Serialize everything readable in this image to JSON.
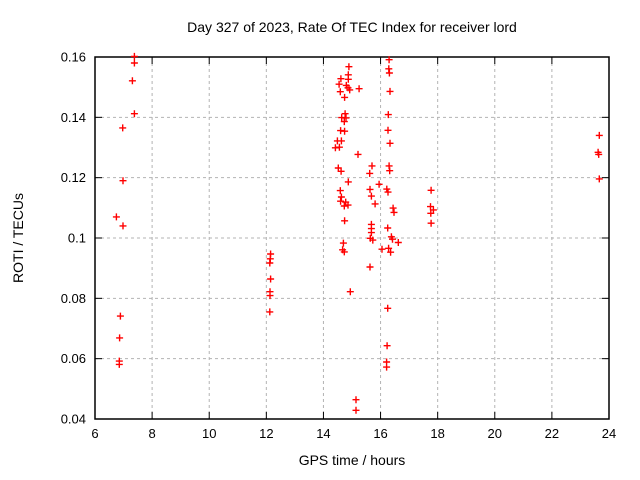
{
  "window": {
    "background": "#ffffff"
  },
  "chart_data": {
    "type": "scatter",
    "title": "Day 327 of 2023, Rate Of TEC Index for receiver lord",
    "xlabel": "GPS time / hours",
    "ylabel": "ROTI / TECUs",
    "xlim": [
      6,
      24
    ],
    "ylim": [
      0.04,
      0.16
    ],
    "xticks": [
      6,
      8,
      10,
      12,
      14,
      16,
      18,
      20,
      22,
      24
    ],
    "yticks": [
      0.04,
      0.06,
      0.08,
      0.1,
      0.12,
      0.14,
      0.16
    ],
    "ytick_labels": [
      "0.04",
      "0.06",
      "0.08",
      "0.1",
      "0.12",
      "0.14",
      "0.16"
    ],
    "grid": true,
    "legend": false,
    "marker": "plus",
    "colors": {
      "marker": "#ff0000",
      "grid": "#b3b3b3",
      "axis": "#000000",
      "text": "#000000",
      "background": "#ffffff"
    },
    "series": [
      {
        "name": "ROTI",
        "points": [
          [
            7.38,
            0.1602
          ],
          [
            7.38,
            0.158
          ],
          [
            7.31,
            0.1521
          ],
          [
            7.38,
            0.1412
          ],
          [
            6.97,
            0.1365
          ],
          [
            6.98,
            0.119
          ],
          [
            6.75,
            0.107
          ],
          [
            6.98,
            0.104
          ],
          [
            6.89,
            0.0741
          ],
          [
            6.86,
            0.0669
          ],
          [
            6.85,
            0.0592
          ],
          [
            6.85,
            0.0581
          ],
          [
            12.15,
            0.0947
          ],
          [
            12.14,
            0.0931
          ],
          [
            12.12,
            0.0917
          ],
          [
            12.15,
            0.0864
          ],
          [
            12.13,
            0.0822
          ],
          [
            12.13,
            0.0809
          ],
          [
            12.12,
            0.0755
          ],
          [
            14.89,
            0.1568
          ],
          [
            14.87,
            0.1541
          ],
          [
            14.87,
            0.1526
          ],
          [
            14.61,
            0.1528
          ],
          [
            14.55,
            0.151
          ],
          [
            14.8,
            0.1506
          ],
          [
            14.86,
            0.1498
          ],
          [
            14.92,
            0.1491
          ],
          [
            14.59,
            0.1485
          ],
          [
            14.74,
            0.1466
          ],
          [
            14.76,
            0.1412
          ],
          [
            14.64,
            0.1399
          ],
          [
            14.79,
            0.1398
          ],
          [
            14.73,
            0.1386
          ],
          [
            14.6,
            0.1356
          ],
          [
            14.74,
            0.1354
          ],
          [
            14.49,
            0.1322
          ],
          [
            14.63,
            0.1322
          ],
          [
            14.42,
            0.1299
          ],
          [
            14.56,
            0.1301
          ],
          [
            14.52,
            0.1232
          ],
          [
            14.62,
            0.1221
          ],
          [
            14.87,
            0.1186
          ],
          [
            14.59,
            0.1157
          ],
          [
            14.63,
            0.1136
          ],
          [
            14.6,
            0.1122
          ],
          [
            14.78,
            0.1119
          ],
          [
            14.86,
            0.1109
          ],
          [
            14.73,
            0.1106
          ],
          [
            14.74,
            0.1057
          ],
          [
            14.7,
            0.0983
          ],
          [
            14.67,
            0.0961
          ],
          [
            14.73,
            0.0954
          ],
          [
            14.94,
            0.0822
          ],
          [
            15.25,
            0.1495
          ],
          [
            15.21,
            0.1277
          ],
          [
            15.7,
            0.1239
          ],
          [
            15.62,
            0.1214
          ],
          [
            15.63,
            0.1161
          ],
          [
            15.68,
            0.1139
          ],
          [
            15.81,
            0.1113
          ],
          [
            15.68,
            0.1045
          ],
          [
            15.68,
            0.1031
          ],
          [
            15.68,
            0.1018
          ],
          [
            15.64,
            0.0999
          ],
          [
            15.73,
            0.0993
          ],
          [
            15.63,
            0.0904
          ],
          [
            15.14,
            0.0464
          ],
          [
            15.14,
            0.0429
          ],
          [
            15.95,
            0.1178
          ],
          [
            16.3,
            0.1591
          ],
          [
            16.29,
            0.1561
          ],
          [
            16.31,
            0.1547
          ],
          [
            16.33,
            0.1486
          ],
          [
            16.27,
            0.1409
          ],
          [
            16.26,
            0.1357
          ],
          [
            16.33,
            0.1314
          ],
          [
            16.3,
            0.1239
          ],
          [
            16.32,
            0.1223
          ],
          [
            16.22,
            0.1162
          ],
          [
            16.26,
            0.1152
          ],
          [
            16.44,
            0.1099
          ],
          [
            16.47,
            0.1085
          ],
          [
            16.25,
            0.1033
          ],
          [
            16.38,
            0.1004
          ],
          [
            16.42,
            0.0996
          ],
          [
            16.28,
            0.0966
          ],
          [
            16.05,
            0.0963
          ],
          [
            16.35,
            0.0953
          ],
          [
            16.62,
            0.0985
          ],
          [
            16.25,
            0.0767
          ],
          [
            16.23,
            0.0643
          ],
          [
            16.21,
            0.0589
          ],
          [
            16.21,
            0.0572
          ],
          [
            17.77,
            0.1158
          ],
          [
            17.75,
            0.1104
          ],
          [
            17.85,
            0.1093
          ],
          [
            17.76,
            0.1082
          ],
          [
            17.77,
            0.1049
          ],
          [
            23.66,
            0.134
          ],
          [
            23.62,
            0.1284
          ],
          [
            23.64,
            0.1277
          ],
          [
            23.66,
            0.1196
          ]
        ]
      }
    ]
  }
}
